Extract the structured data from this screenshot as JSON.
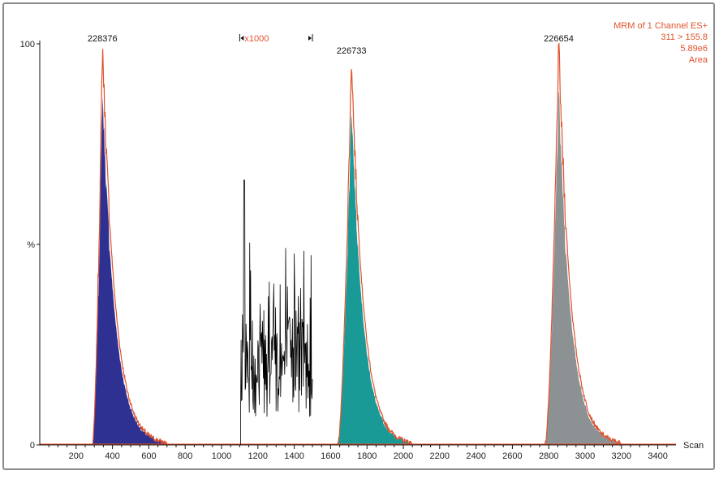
{
  "chart_data": {
    "type": "area",
    "xlabel": "Scan",
    "ylabel": "%",
    "xlim": [
      0,
      3500
    ],
    "ylim": [
      0,
      100
    ],
    "x_ticks": [
      200,
      400,
      600,
      800,
      1000,
      1200,
      1400,
      1600,
      1800,
      2000,
      2200,
      2400,
      2600,
      2800,
      3000,
      3200,
      3400
    ],
    "y_tick_labels": [
      {
        "value": 100,
        "label": "100"
      },
      {
        "value": 50,
        "label": "%"
      },
      {
        "value": 0,
        "label": "0"
      }
    ],
    "info_lines": [
      "MRM of 1 Channel ES+",
      "311 > 155.8",
      "5.89e6",
      "Area"
    ],
    "zoom_label": "x1000",
    "zoom_range": [
      1100,
      1500
    ],
    "peaks": [
      {
        "label": "228376",
        "start": 290,
        "apex": 345,
        "end": 700,
        "fill": "#2e3192",
        "height": 100
      },
      {
        "label": "226733",
        "start": 1640,
        "apex": 1715,
        "end": 2050,
        "fill": "#1a9a96",
        "height": 97
      },
      {
        "label": "226654",
        "start": 2780,
        "apex": 2855,
        "end": 3200,
        "fill": "#8c9194",
        "height": 100
      }
    ],
    "noise": {
      "start": 1105,
      "end": 1500,
      "max": 66,
      "mean": 20
    },
    "colors": {
      "trace": "#e0532e",
      "noise": "#000000",
      "axis": "#111111"
    }
  }
}
